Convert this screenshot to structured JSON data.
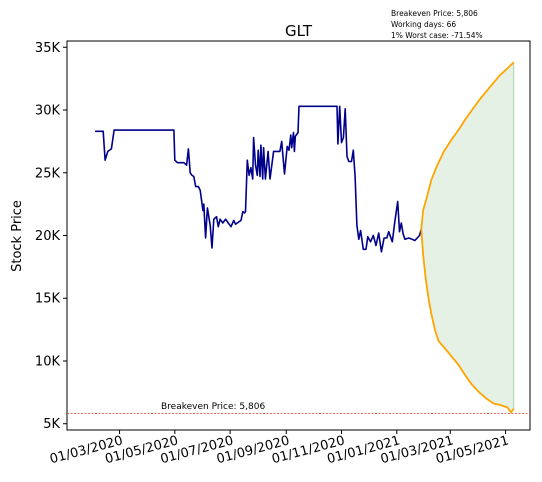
{
  "chart_data": {
    "type": "line",
    "title": "GLT",
    "xlabel": "",
    "ylabel": "Stock Price",
    "xlim": [
      "2020-01-03",
      "2021-05-28"
    ],
    "ylim": [
      4500,
      35500
    ],
    "y_ticks": [
      {
        "value": 5000,
        "label": "5K"
      },
      {
        "value": 10000,
        "label": "10K"
      },
      {
        "value": 15000,
        "label": "15K"
      },
      {
        "value": 20000,
        "label": "20K"
      },
      {
        "value": 25000,
        "label": "25K"
      },
      {
        "value": 30000,
        "label": "30K"
      },
      {
        "value": 35000,
        "label": "35K"
      }
    ],
    "x_ticks": [
      {
        "date": "2020-03-01",
        "label": "01/03/2020"
      },
      {
        "date": "2020-05-01",
        "label": "01/05/2020"
      },
      {
        "date": "2020-07-01",
        "label": "01/07/2020"
      },
      {
        "date": "2020-09-01",
        "label": "01/09/2020"
      },
      {
        "date": "2020-11-01",
        "label": "01/11/2020"
      },
      {
        "date": "2021-01-01",
        "label": "01/01/2021"
      },
      {
        "date": "2021-03-01",
        "label": "01/03/2021"
      },
      {
        "date": "2021-05-01",
        "label": "01/05/2021"
      }
    ],
    "info_lines": [
      "Breakeven Price: 5,806",
      "Working days: 66",
      "1% Worst case: -71.54%"
    ],
    "breakeven": {
      "value": 5806,
      "label": "Breakeven Price: 5,806",
      "color": "#e8362e"
    },
    "colors": {
      "history": "#00008b",
      "projection": "#ffa500",
      "band": "#2e8b2e"
    },
    "history": [
      [
        "2020-02-03",
        28300
      ],
      [
        "2020-02-12",
        28300
      ],
      [
        "2020-02-14",
        26000
      ],
      [
        "2020-02-17",
        26700
      ],
      [
        "2020-02-21",
        26900
      ],
      [
        "2020-02-24",
        28400
      ],
      [
        "2020-03-30",
        28400
      ],
      [
        "2020-04-30",
        28400
      ],
      [
        "2020-05-01",
        26000
      ],
      [
        "2020-05-04",
        25800
      ],
      [
        "2020-05-11",
        25800
      ],
      [
        "2020-05-14",
        25600
      ],
      [
        "2020-05-16",
        26900
      ],
      [
        "2020-05-18",
        25000
      ],
      [
        "2020-05-20",
        24800
      ],
      [
        "2020-05-22",
        24700
      ],
      [
        "2020-05-24",
        23900
      ],
      [
        "2020-05-27",
        23900
      ],
      [
        "2020-05-29",
        23600
      ],
      [
        "2020-06-01",
        22000
      ],
      [
        "2020-06-02",
        22500
      ],
      [
        "2020-06-04",
        19800
      ],
      [
        "2020-06-06",
        22200
      ],
      [
        "2020-06-09",
        20800
      ],
      [
        "2020-06-11",
        19000
      ],
      [
        "2020-06-13",
        21300
      ],
      [
        "2020-06-16",
        21500
      ],
      [
        "2020-06-18",
        20700
      ],
      [
        "2020-06-20",
        21300
      ],
      [
        "2020-06-23",
        21000
      ],
      [
        "2020-06-26",
        21300
      ],
      [
        "2020-06-29",
        21000
      ],
      [
        "2020-07-02",
        20700
      ],
      [
        "2020-07-05",
        21200
      ],
      [
        "2020-07-07",
        20900
      ],
      [
        "2020-07-09",
        21000
      ],
      [
        "2020-07-13",
        21200
      ],
      [
        "2020-07-15",
        21900
      ],
      [
        "2020-07-17",
        21800
      ],
      [
        "2020-07-18",
        21900
      ],
      [
        "2020-07-20",
        26000
      ],
      [
        "2020-07-22",
        24800
      ],
      [
        "2020-07-24",
        25400
      ],
      [
        "2020-07-26",
        24500
      ],
      [
        "2020-07-27",
        27800
      ],
      [
        "2020-07-29",
        25600
      ],
      [
        "2020-07-31",
        24800
      ],
      [
        "2020-08-01",
        26800
      ],
      [
        "2020-08-03",
        24700
      ],
      [
        "2020-08-04",
        27200
      ],
      [
        "2020-08-06",
        24500
      ],
      [
        "2020-08-07",
        27000
      ],
      [
        "2020-08-09",
        24500
      ],
      [
        "2020-08-12",
        26700
      ],
      [
        "2020-08-14",
        24500
      ],
      [
        "2020-08-18",
        26700
      ],
      [
        "2020-08-25",
        26700
      ],
      [
        "2020-08-27",
        27500
      ],
      [
        "2020-08-30",
        24900
      ],
      [
        "2020-09-02",
        27100
      ],
      [
        "2020-09-04",
        26800
      ],
      [
        "2020-09-06",
        28000
      ],
      [
        "2020-09-07",
        27000
      ],
      [
        "2020-09-09",
        28200
      ],
      [
        "2020-09-10",
        26700
      ],
      [
        "2020-09-11",
        27900
      ],
      [
        "2020-09-14",
        28200
      ],
      [
        "2020-09-15",
        30300
      ],
      [
        "2020-10-27",
        30300
      ],
      [
        "2020-10-28",
        27300
      ],
      [
        "2020-10-30",
        30300
      ],
      [
        "2020-11-01",
        27400
      ],
      [
        "2020-11-03",
        27800
      ],
      [
        "2020-11-05",
        30100
      ],
      [
        "2020-11-07",
        26300
      ],
      [
        "2020-11-09",
        25900
      ],
      [
        "2020-11-12",
        25900
      ],
      [
        "2020-11-14",
        26800
      ],
      [
        "2020-11-16",
        24700
      ],
      [
        "2020-11-18",
        20800
      ],
      [
        "2020-11-20",
        19700
      ],
      [
        "2020-11-22",
        20400
      ],
      [
        "2020-11-25",
        18900
      ],
      [
        "2020-11-28",
        18900
      ],
      [
        "2020-11-30",
        19900
      ],
      [
        "2020-12-03",
        19500
      ],
      [
        "2020-12-06",
        20000
      ],
      [
        "2020-12-09",
        19200
      ],
      [
        "2020-12-12",
        20200
      ],
      [
        "2020-12-15",
        18700
      ],
      [
        "2020-12-18",
        19800
      ],
      [
        "2020-12-21",
        19800
      ],
      [
        "2020-12-23",
        20300
      ],
      [
        "2020-12-27",
        19500
      ],
      [
        "2020-12-30",
        21200
      ],
      [
        "2021-01-02",
        22700
      ],
      [
        "2021-01-04",
        20300
      ],
      [
        "2021-01-06",
        21000
      ],
      [
        "2021-01-08",
        20100
      ],
      [
        "2021-01-10",
        19700
      ],
      [
        "2021-01-14",
        19800
      ],
      [
        "2021-01-18",
        19700
      ],
      [
        "2021-01-21",
        19600
      ],
      [
        "2021-01-26",
        20000
      ],
      [
        "2021-01-28",
        20500
      ]
    ],
    "projection_upper": [
      [
        "2021-01-28",
        20500
      ],
      [
        "2021-01-30",
        22000
      ],
      [
        "2021-02-03",
        23000
      ],
      [
        "2021-02-08",
        24400
      ],
      [
        "2021-02-14",
        25500
      ],
      [
        "2021-02-22",
        26700
      ],
      [
        "2021-03-02",
        27600
      ],
      [
        "2021-03-10",
        28400
      ],
      [
        "2021-03-18",
        29300
      ],
      [
        "2021-03-25",
        30000
      ],
      [
        "2021-04-02",
        30800
      ],
      [
        "2021-04-10",
        31500
      ],
      [
        "2021-04-18",
        32200
      ],
      [
        "2021-04-25",
        32800
      ],
      [
        "2021-05-03",
        33300
      ],
      [
        "2021-05-10",
        33800
      ]
    ],
    "projection_lower": [
      [
        "2021-01-28",
        20500
      ],
      [
        "2021-01-30",
        18500
      ],
      [
        "2021-02-02",
        16500
      ],
      [
        "2021-02-05",
        15000
      ],
      [
        "2021-02-08",
        13800
      ],
      [
        "2021-02-12",
        12500
      ],
      [
        "2021-02-16",
        11600
      ],
      [
        "2021-02-22",
        11100
      ],
      [
        "2021-03-02",
        10400
      ],
      [
        "2021-03-10",
        9700
      ],
      [
        "2021-03-18",
        8800
      ],
      [
        "2021-03-25",
        8100
      ],
      [
        "2021-04-02",
        7500
      ],
      [
        "2021-04-10",
        7000
      ],
      [
        "2021-04-18",
        6600
      ],
      [
        "2021-04-25",
        6500
      ],
      [
        "2021-05-03",
        6300
      ],
      [
        "2021-05-07",
        5900
      ],
      [
        "2021-05-10",
        6200
      ]
    ]
  }
}
